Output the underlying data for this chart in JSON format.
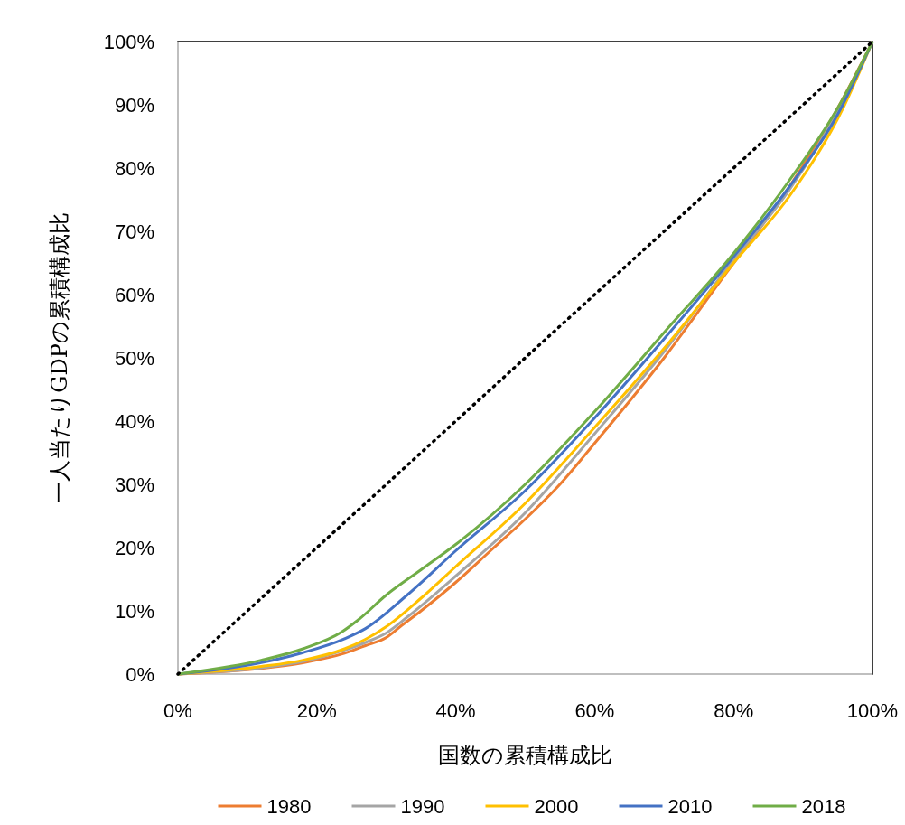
{
  "chart_data": {
    "type": "line",
    "xlabel": "国数の累積構成比",
    "ylabel": "一人当たりGDPの累積構成比",
    "xlim": [
      0,
      100
    ],
    "ylim": [
      0,
      100
    ],
    "xticks": [
      {
        "value": 0,
        "label": "0%"
      },
      {
        "value": 20,
        "label": "20%"
      },
      {
        "value": 40,
        "label": "40%"
      },
      {
        "value": 60,
        "label": "60%"
      },
      {
        "value": 80,
        "label": "80%"
      },
      {
        "value": 100,
        "label": "100%"
      }
    ],
    "yticks": [
      {
        "value": 0,
        "label": "0%"
      },
      {
        "value": 10,
        "label": "10%"
      },
      {
        "value": 20,
        "label": "20%"
      },
      {
        "value": 30,
        "label": "30%"
      },
      {
        "value": 40,
        "label": "40%"
      },
      {
        "value": 50,
        "label": "50%"
      },
      {
        "value": 60,
        "label": "60%"
      },
      {
        "value": 70,
        "label": "70%"
      },
      {
        "value": 80,
        "label": "80%"
      },
      {
        "value": 90,
        "label": "90%"
      },
      {
        "value": 100,
        "label": "100%"
      }
    ],
    "grid": false,
    "legend": "bottom",
    "marker": "none",
    "series": [
      {
        "name": "1980",
        "color": "#ed7d31",
        "x": [
          0,
          12,
          18,
          24,
          27,
          30,
          32,
          35,
          40,
          45,
          50,
          55,
          60,
          70,
          78,
          88,
          95,
          100
        ],
        "values": [
          0,
          0.9,
          1.8,
          3.3,
          4.5,
          5.8,
          7.5,
          10,
          14.5,
          19.5,
          24.5,
          30,
          36.5,
          50,
          62,
          77,
          89.5,
          100
        ]
      },
      {
        "name": "1990",
        "color": "#a5a5a5",
        "x": [
          0,
          12,
          18,
          24,
          27,
          30,
          33,
          40,
          50,
          60,
          70,
          80,
          88,
          96,
          100
        ],
        "values": [
          0,
          1,
          2,
          3.8,
          5,
          6.5,
          9,
          15.5,
          25.5,
          38,
          51,
          65.5,
          76.5,
          91,
          100
        ]
      },
      {
        "name": "2000",
        "color": "#ffc000",
        "x": [
          0,
          12,
          18,
          24,
          27,
          30,
          35,
          40,
          50,
          60,
          70,
          80,
          88,
          96,
          100
        ],
        "values": [
          0,
          1.2,
          2.2,
          4,
          5.5,
          7.5,
          12,
          17,
          27,
          39,
          51.5,
          65,
          75.5,
          90,
          100
        ]
      },
      {
        "name": "2010",
        "color": "#4472c4",
        "x": [
          0,
          12,
          18,
          24,
          27,
          33,
          40,
          50,
          60,
          70,
          80,
          88,
          95,
          100
        ],
        "values": [
          0,
          1.8,
          3.4,
          5.6,
          7.2,
          12.5,
          19.5,
          29,
          40.5,
          53,
          66,
          77,
          88.5,
          100
        ]
      },
      {
        "name": "2018",
        "color": "#70ad47",
        "x": [
          0,
          12,
          18,
          23.5,
          26,
          30,
          35,
          40,
          50,
          60,
          70,
          80,
          88,
          95,
          100
        ],
        "values": [
          0,
          2.2,
          4,
          6.6,
          8.6,
          12.5,
          16.5,
          20.5,
          30,
          41.5,
          54,
          66.5,
          78,
          89.5,
          100
        ]
      },
      {
        "color": "#000000",
        "line_style": "dotted",
        "x": [
          0,
          100
        ],
        "values": [
          0,
          100
        ]
      }
    ]
  }
}
